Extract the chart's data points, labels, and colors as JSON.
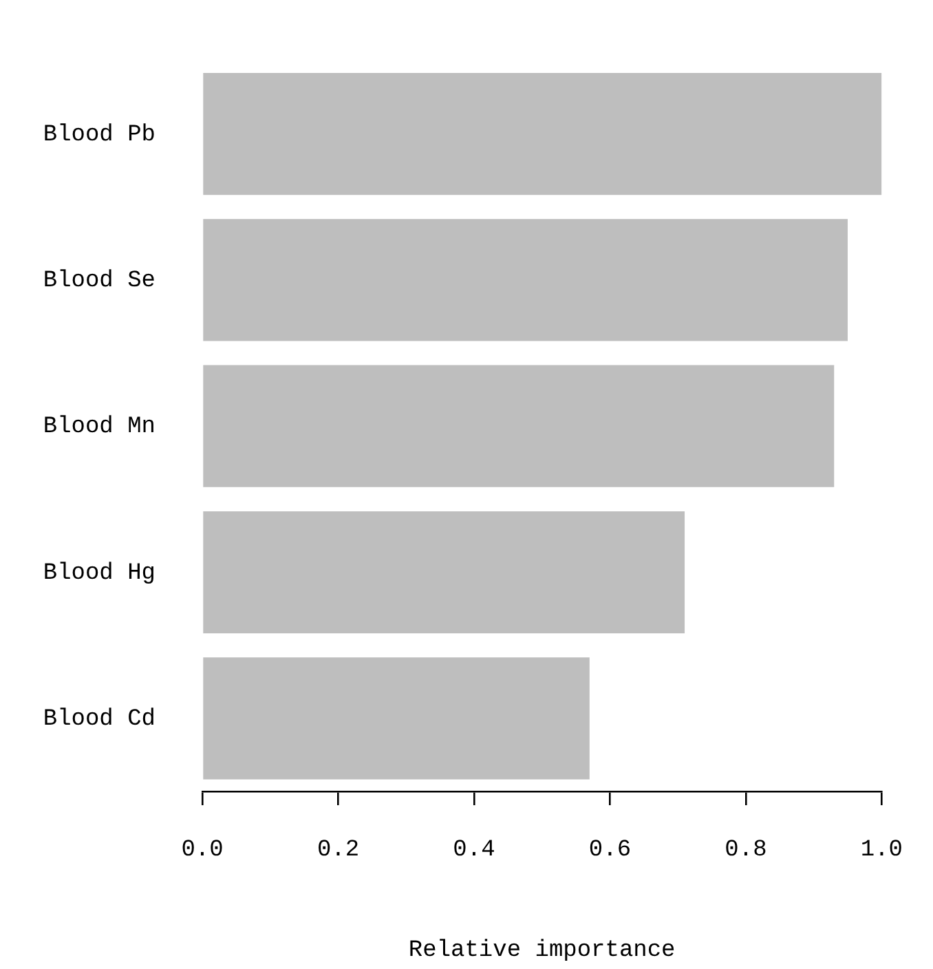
{
  "chart_data": {
    "type": "bar",
    "orientation": "horizontal",
    "xlabel": "Relative importance",
    "categories": [
      "Blood Pb",
      "Blood Se",
      "Blood Mn",
      "Blood Hg",
      "Blood Cd"
    ],
    "values": [
      1.0,
      0.95,
      0.93,
      0.71,
      0.57
    ],
    "color": "#bebebe",
    "xlim": [
      0,
      1
    ],
    "xticks": [
      {
        "value": 0,
        "label": "0.0"
      },
      {
        "value": 0.2,
        "label": "0.2"
      },
      {
        "value": 0.4,
        "label": "0.4"
      },
      {
        "value": 0.6,
        "label": "0.6"
      },
      {
        "value": 0.8,
        "label": "0.8"
      },
      {
        "value": 1,
        "label": "1.0"
      }
    ],
    "grid": false,
    "legend": false
  }
}
